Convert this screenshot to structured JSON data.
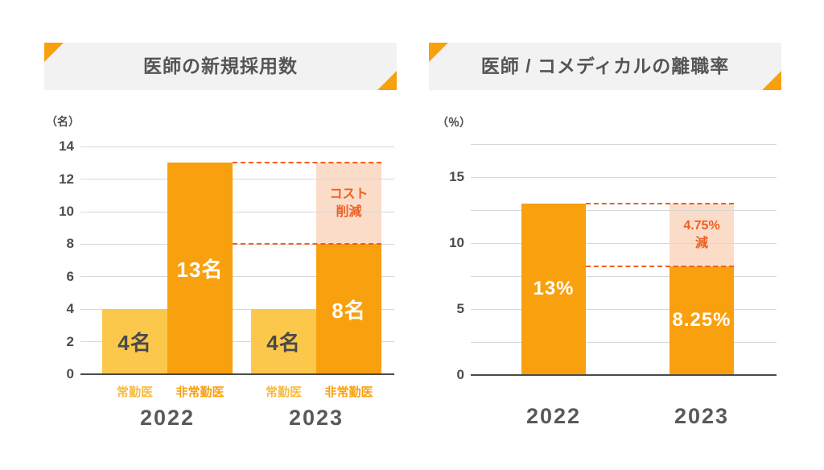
{
  "colors": {
    "canvas_bg": "#FFFFFF",
    "orange": "#F9A00E",
    "yellow": "#FBC84B",
    "pink": "#FBDCC9",
    "accent_red": "#EE5F23",
    "title_text": "#555555",
    "axis_text": "#4D4D4D",
    "grid_line": "#D8D8D8",
    "axis_line": "#4A4A4A",
    "panel_bg": "#F2F2F2",
    "year_text": "#595959",
    "value_dark": "#4A4A4A",
    "value_light": "#FFFFFF"
  },
  "chart_data": [
    {
      "type": "bar",
      "title": "医師の新規採用数",
      "unit_label": "（名）",
      "ylim": [
        0,
        14
      ],
      "grid_step": 2,
      "yticks": [
        0,
        2,
        4,
        6,
        8,
        10,
        12,
        14
      ],
      "grid": true,
      "legend_position": "none",
      "groups": [
        {
          "year": "2022",
          "bars": [
            {
              "label": "常勤医",
              "label_color": "#F6BC41",
              "value": 4,
              "display": "4名",
              "color": "yellow",
              "value_text": "dark"
            },
            {
              "label": "非常勤医",
              "label_color": "#F9A00E",
              "value": 13,
              "display": "13名",
              "color": "orange",
              "value_text": "light"
            }
          ]
        },
        {
          "year": "2023",
          "bars": [
            {
              "label": "常勤医",
              "label_color": "#F6BC41",
              "value": 4,
              "display": "4名",
              "color": "yellow",
              "value_text": "dark"
            },
            {
              "label": "非常勤医",
              "label_color": "#F9A00E",
              "value": 8,
              "display": "8名",
              "color": "orange",
              "value_text": "light",
              "reduction": {
                "from": 13,
                "to": 8,
                "label": "コスト\n削減"
              }
            }
          ]
        }
      ]
    },
    {
      "type": "bar",
      "title": "医師 / コメディカルの離職率",
      "unit_label": "（％）",
      "ylim": [
        0,
        17.5
      ],
      "grid_step": 2.5,
      "yticks": [
        0,
        5,
        10,
        15
      ],
      "grid": true,
      "legend_position": "none",
      "groups": [
        {
          "year": "2022",
          "bars": [
            {
              "value": 13,
              "display": "13%",
              "color": "orange",
              "value_text": "light"
            }
          ]
        },
        {
          "year": "2023",
          "bars": [
            {
              "value": 8.25,
              "display": "8.25%",
              "color": "orange",
              "value_text": "light",
              "reduction": {
                "from": 13,
                "to": 8.25,
                "label": "4.75%\n減"
              }
            }
          ]
        }
      ]
    }
  ]
}
